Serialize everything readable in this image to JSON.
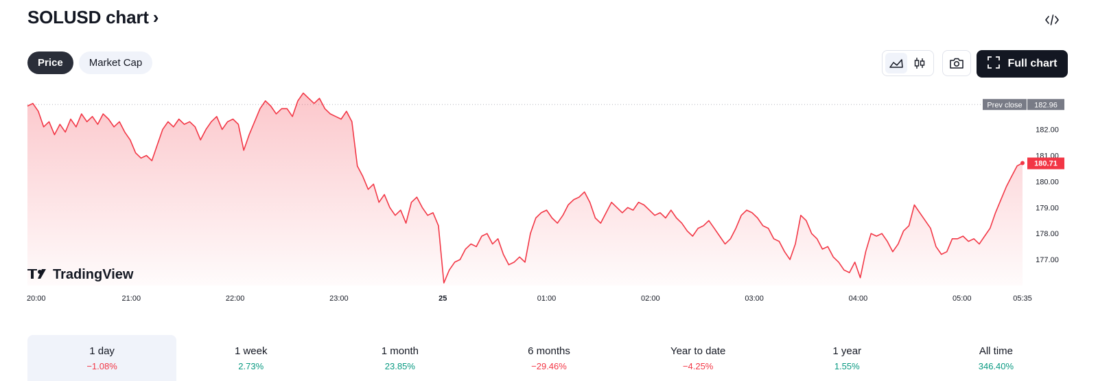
{
  "header": {
    "title": "SOLUSD chart",
    "chevron": "›",
    "embed_icon": "code-icon"
  },
  "tabs": [
    {
      "label": "Price",
      "active": true
    },
    {
      "label": "Market Cap",
      "active": false
    }
  ],
  "toolbar": {
    "line_icon": "area-chart-icon",
    "candles_icon": "candlestick-icon",
    "camera_icon": "camera-icon",
    "full_chart_label": "Full chart",
    "full_chart_icon": "fullscreen-icon"
  },
  "brand": {
    "logo_text": "TradingView"
  },
  "colors": {
    "line": "#f23645",
    "prev_close_badge": "#787b86",
    "positive": "#089981",
    "negative": "#f23645"
  },
  "chart_data": {
    "type": "area",
    "series": [
      {
        "values": [
          182.9,
          183.0,
          182.7,
          182.1,
          182.3,
          181.8,
          182.2,
          181.9,
          182.4,
          182.1,
          182.6,
          182.3,
          182.5,
          182.2,
          182.6,
          182.4,
          182.1,
          182.3,
          181.9,
          181.6,
          181.1,
          180.9,
          181.0,
          180.8,
          181.4,
          182.0,
          182.3,
          182.1,
          182.4,
          182.2,
          182.3,
          182.1,
          181.6,
          182.0,
          182.3,
          182.5,
          182.0,
          182.3,
          182.4,
          182.2,
          181.2,
          181.8,
          182.3,
          182.8,
          183.1,
          182.9,
          182.6,
          182.8,
          182.8,
          182.5,
          183.1,
          183.4,
          183.2,
          183.0,
          183.2,
          182.8,
          182.6,
          182.5,
          182.4,
          182.7,
          182.3,
          180.6,
          180.2,
          179.7,
          179.9,
          179.2,
          179.5,
          179.0,
          178.7,
          178.9,
          178.4,
          179.2,
          179.4,
          179.0,
          178.7,
          178.8,
          178.3,
          176.1,
          176.6,
          176.9,
          177.0,
          177.4,
          177.6,
          177.5,
          177.9,
          178.0,
          177.6,
          177.8,
          177.2,
          176.8,
          176.9,
          177.1,
          176.9,
          178.0,
          178.6,
          178.8,
          178.9,
          178.6,
          178.4,
          178.7,
          179.1,
          179.3,
          179.4,
          179.6,
          179.2,
          178.6,
          178.4,
          178.8,
          179.2,
          179.0,
          178.8,
          179.0,
          178.9,
          179.2,
          179.1,
          178.9,
          178.7,
          178.8,
          178.6,
          178.9,
          178.6,
          178.4,
          178.1,
          177.9,
          178.2,
          178.3,
          178.5,
          178.2,
          177.9,
          177.6,
          177.8,
          178.2,
          178.7,
          178.9,
          178.8,
          178.6,
          178.3,
          178.2,
          177.8,
          177.7,
          177.3,
          177.0,
          177.6,
          178.7,
          178.5,
          178.0,
          177.8,
          177.4,
          177.5,
          177.1,
          176.9,
          176.6,
          176.5,
          176.9,
          176.3,
          177.3,
          178.0,
          177.9,
          178.0,
          177.7,
          177.3,
          177.6,
          178.1,
          178.3,
          179.1,
          178.8,
          178.5,
          178.2,
          177.5,
          177.2,
          177.3,
          177.8,
          177.8,
          177.9,
          177.7,
          177.8,
          177.6,
          177.9,
          178.2,
          178.8,
          179.3,
          179.8,
          180.2,
          180.6,
          180.71
        ]
      }
    ],
    "x_start": "20:00",
    "x_end": "05:35",
    "x_ticks": [
      "20:00",
      "21:00",
      "22:00",
      "23:00",
      "25",
      "01:00",
      "02:00",
      "03:00",
      "04:00",
      "05:00",
      "05:35"
    ],
    "y_ticks": [
      "182.00",
      "181.00",
      "180.00",
      "179.00",
      "178.00",
      "177.00"
    ],
    "ylim": [
      176.0,
      183.6
    ],
    "prev_close": {
      "label": "Prev close",
      "value": "182.96"
    },
    "last_price": "180.71",
    "grid": false
  },
  "periods": [
    {
      "label": "1 day",
      "change": "−1.08%",
      "sign": "neg",
      "active": true
    },
    {
      "label": "1 week",
      "change": "2.73%",
      "sign": "pos",
      "active": false
    },
    {
      "label": "1 month",
      "change": "23.85%",
      "sign": "pos",
      "active": false
    },
    {
      "label": "6 months",
      "change": "−29.46%",
      "sign": "neg",
      "active": false
    },
    {
      "label": "Year to date",
      "change": "−4.25%",
      "sign": "neg",
      "active": false
    },
    {
      "label": "1 year",
      "change": "1.55%",
      "sign": "pos",
      "active": false
    },
    {
      "label": "All time",
      "change": "346.40%",
      "sign": "pos",
      "active": false
    }
  ]
}
